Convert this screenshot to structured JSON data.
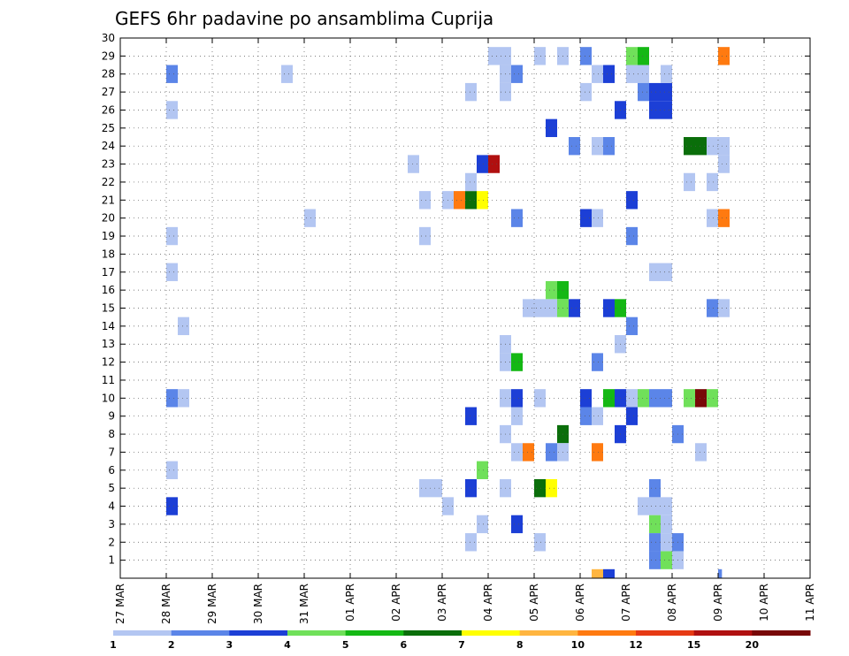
{
  "chart_data": {
    "type": "heatmap",
    "title": "GEFS 6hr padavine po ansamblima Cuprija",
    "xlabel": "",
    "ylabel": "",
    "x_ticks": [
      "27 MAR",
      "28 MAR",
      "29 MAR",
      "30 MAR",
      "31 MAR",
      "01 APR",
      "02 APR",
      "03 APR",
      "04 APR",
      "05 APR",
      "06 APR",
      "07 APR",
      "08 APR",
      "09 APR",
      "10 APR",
      "11 APR"
    ],
    "y_ticks": [
      "1",
      "2",
      "3",
      "4",
      "5",
      "6",
      "7",
      "8",
      "9",
      "10",
      "11",
      "12",
      "13",
      "14",
      "15",
      "16",
      "17",
      "18",
      "19",
      "20",
      "21",
      "22",
      "23",
      "24",
      "25",
      "26",
      "27",
      "28",
      "29",
      "30"
    ],
    "xlim": [
      0,
      15
    ],
    "ylim": [
      0,
      30
    ],
    "grid": true,
    "colorbar": {
      "labels": [
        "1",
        "2",
        "3",
        "4",
        "5",
        "6",
        "7",
        "8",
        "10",
        "12",
        "15",
        "20"
      ],
      "colors": [
        "#b3c6f2",
        "#5b85e8",
        "#1c3fd6",
        "#70e05a",
        "#14b814",
        "#0a6e0a",
        "#ffff00",
        "#ffb540",
        "#ff7a10",
        "#e63a14",
        "#b01010",
        "#780808"
      ]
    },
    "cells": [
      [
        1.0,
        28,
        2
      ],
      [
        1.0,
        26,
        1
      ],
      [
        1.0,
        19,
        1
      ],
      [
        1.0,
        17,
        1
      ],
      [
        1.0,
        10,
        2
      ],
      [
        1.25,
        10,
        1
      ],
      [
        1.25,
        14,
        1
      ],
      [
        1.0,
        6,
        1
      ],
      [
        1.0,
        4,
        3
      ],
      [
        3.5,
        28,
        1
      ],
      [
        4.0,
        20,
        1
      ],
      [
        6.25,
        23,
        1
      ],
      [
        6.5,
        21,
        1
      ],
      [
        6.5,
        19,
        1
      ],
      [
        6.5,
        5,
        1
      ],
      [
        6.75,
        5,
        1
      ],
      [
        7.0,
        4,
        1
      ],
      [
        7.0,
        21,
        1
      ],
      [
        7.25,
        21,
        9
      ],
      [
        7.5,
        21,
        6
      ],
      [
        7.75,
        21,
        7
      ],
      [
        7.5,
        22,
        1
      ],
      [
        7.5,
        27,
        1
      ],
      [
        7.5,
        9,
        3
      ],
      [
        7.5,
        5,
        3
      ],
      [
        7.5,
        2,
        1
      ],
      [
        7.75,
        23,
        3
      ],
      [
        8.0,
        23,
        11
      ],
      [
        7.75,
        6,
        4
      ],
      [
        7.75,
        3,
        1
      ],
      [
        8.0,
        29,
        1
      ],
      [
        8.25,
        29,
        1
      ],
      [
        8.25,
        28,
        1
      ],
      [
        8.5,
        28,
        2
      ],
      [
        8.25,
        27,
        1
      ],
      [
        8.5,
        20,
        2
      ],
      [
        8.5,
        10,
        3
      ],
      [
        8.25,
        10,
        1
      ],
      [
        8.25,
        13,
        1
      ],
      [
        8.25,
        12,
        1
      ],
      [
        8.5,
        12,
        5
      ],
      [
        8.5,
        9,
        1
      ],
      [
        8.25,
        8,
        1
      ],
      [
        8.5,
        7,
        1
      ],
      [
        8.75,
        7,
        9
      ],
      [
        8.25,
        5,
        1
      ],
      [
        8.5,
        3,
        3
      ],
      [
        8.75,
        15,
        1
      ],
      [
        9.0,
        15,
        1
      ],
      [
        9.25,
        15,
        1
      ],
      [
        9.25,
        16,
        4
      ],
      [
        9.5,
        16,
        5
      ],
      [
        9.5,
        15,
        4
      ],
      [
        9.75,
        15,
        3
      ],
      [
        9.0,
        29,
        1
      ],
      [
        9.5,
        29,
        1
      ],
      [
        9.25,
        25,
        3
      ],
      [
        9.0,
        10,
        1
      ],
      [
        9.5,
        8,
        6
      ],
      [
        9.25,
        7,
        2
      ],
      [
        9.5,
        7,
        1
      ],
      [
        9.0,
        5,
        6
      ],
      [
        9.25,
        5,
        7
      ],
      [
        9.0,
        2,
        1
      ],
      [
        9.75,
        24,
        2
      ],
      [
        10.0,
        29,
        2
      ],
      [
        10.25,
        28,
        1
      ],
      [
        10.0,
        27,
        1
      ],
      [
        10.0,
        20,
        3
      ],
      [
        10.25,
        20,
        1
      ],
      [
        10.25,
        24,
        1
      ],
      [
        10.0,
        10,
        3
      ],
      [
        10.0,
        9,
        2
      ],
      [
        10.25,
        9,
        1
      ],
      [
        10.25,
        12,
        2
      ],
      [
        10.25,
        7,
        9
      ],
      [
        10.5,
        28,
        3
      ],
      [
        10.5,
        24,
        2
      ],
      [
        10.5,
        15,
        3
      ],
      [
        10.75,
        15,
        5
      ],
      [
        10.5,
        10,
        5
      ],
      [
        10.75,
        10,
        3
      ],
      [
        11.0,
        10,
        1
      ],
      [
        10.75,
        13,
        1
      ],
      [
        10.75,
        8,
        3
      ],
      [
        10.75,
        26,
        3
      ],
      [
        11.0,
        28,
        1
      ],
      [
        11.25,
        28,
        1
      ],
      [
        11.25,
        27,
        2
      ],
      [
        11.0,
        29,
        4
      ],
      [
        11.25,
        29,
        5
      ],
      [
        11.0,
        21,
        3
      ],
      [
        11.0,
        19,
        2
      ],
      [
        11.0,
        14,
        2
      ],
      [
        11.25,
        10,
        4
      ],
      [
        11.0,
        9,
        3
      ],
      [
        11.5,
        10,
        2
      ],
      [
        11.75,
        10,
        2
      ],
      [
        11.5,
        27,
        3
      ],
      [
        11.75,
        27,
        3
      ],
      [
        11.75,
        26,
        3
      ],
      [
        11.5,
        26,
        3
      ],
      [
        11.75,
        28,
        1
      ],
      [
        11.75,
        17,
        1
      ],
      [
        11.5,
        17,
        1
      ],
      [
        11.5,
        4,
        1
      ],
      [
        11.25,
        4,
        1
      ],
      [
        11.5,
        3,
        4
      ],
      [
        11.75,
        3,
        1
      ],
      [
        11.5,
        5,
        2
      ],
      [
        11.5,
        2,
        2
      ],
      [
        11.5,
        1,
        2
      ],
      [
        11.75,
        1,
        4
      ],
      [
        12.0,
        1,
        1
      ],
      [
        11.75,
        2,
        1
      ],
      [
        12.0,
        2,
        2
      ],
      [
        11.75,
        4,
        1
      ],
      [
        12.0,
        8,
        2
      ],
      [
        12.25,
        24,
        6
      ],
      [
        12.5,
        24,
        6
      ],
      [
        12.75,
        24,
        1
      ],
      [
        12.25,
        22,
        1
      ],
      [
        12.25,
        10,
        4
      ],
      [
        12.5,
        10,
        12
      ],
      [
        12.75,
        10,
        4
      ],
      [
        12.5,
        7,
        1
      ],
      [
        13.0,
        24,
        1
      ],
      [
        13.0,
        23,
        1
      ],
      [
        12.75,
        22,
        1
      ],
      [
        13.0,
        20,
        9
      ],
      [
        12.75,
        20,
        1
      ],
      [
        12.75,
        15,
        2
      ],
      [
        13.0,
        15,
        1
      ],
      [
        13.0,
        29,
        9
      ]
    ],
    "bottom_strip": [
      [
        10.25,
        8
      ],
      [
        10.5,
        3
      ],
      [
        13.0,
        2
      ]
    ]
  }
}
